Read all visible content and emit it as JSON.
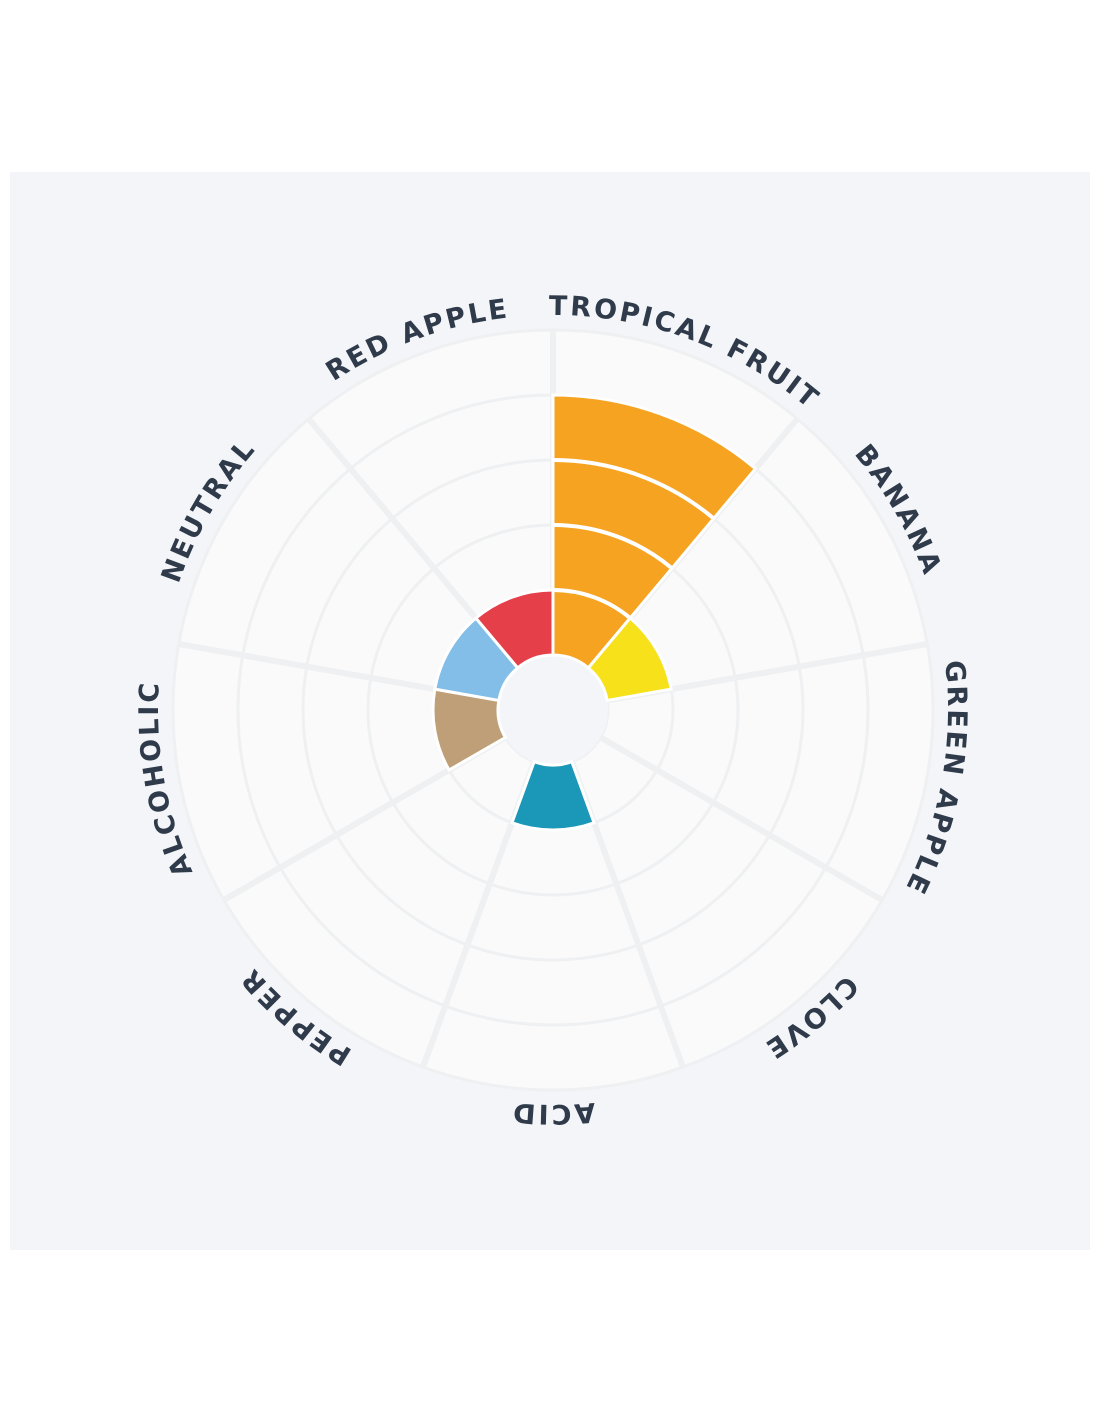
{
  "chart_data": {
    "type": "polar-bar",
    "categories": [
      "TROPICAL FRUIT",
      "BANANA",
      "GREEN APPLE",
      "CLOVE",
      "ACID",
      "PEPPER",
      "ALCOHOLIC",
      "NEUTRAL",
      "RED APPLE"
    ],
    "values": [
      4,
      1,
      0,
      0,
      1,
      0,
      1,
      1,
      1
    ],
    "colors": [
      "#f5a321",
      "#f7e11b",
      null,
      null,
      "#1b97b8",
      null,
      "#bf9f77",
      "#82bee8",
      "#e5404a"
    ],
    "rlim": [
      0,
      5
    ],
    "rticks": [
      0,
      1,
      2,
      3,
      4,
      5
    ],
    "grid": true
  }
}
